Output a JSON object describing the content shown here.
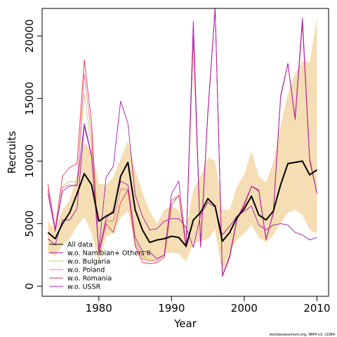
{
  "chart_data": {
    "type": "line",
    "xlabel": "Year",
    "ylabel": "Recruits",
    "xlim": [
      1972.2,
      2011.6
    ],
    "ylim": [
      -800,
      22200
    ],
    "x_ticks": [
      1980,
      1990,
      2000,
      2010
    ],
    "y_ticks": [
      0,
      5000,
      10000,
      15000,
      20000
    ],
    "years": [
      1973,
      1974,
      1975,
      1976,
      1977,
      1978,
      1979,
      1980,
      1981,
      1982,
      1983,
      1984,
      1985,
      1986,
      1987,
      1988,
      1989,
      1990,
      1991,
      1992,
      1993,
      1994,
      1995,
      1996,
      1997,
      1998,
      1999,
      2000,
      2001,
      2002,
      2003,
      2004,
      2005,
      2006,
      2007,
      2008,
      2009,
      2010
    ],
    "band": {
      "color": "#f5deb3",
      "lower": [
        2700,
        2400,
        3300,
        3800,
        4800,
        5500,
        4300,
        1800,
        4000,
        4200,
        5500,
        6000,
        3300,
        2100,
        2000,
        2000,
        2600,
        2700,
        2600,
        2000,
        3400,
        3600,
        3800,
        4500,
        1000,
        2800,
        3700,
        4200,
        4900,
        3900,
        3500,
        4100,
        5000,
        5900,
        6100,
        5700,
        4500,
        4200
      ],
      "upper": [
        5200,
        4500,
        6100,
        6900,
        9000,
        11500,
        10800,
        8200,
        8100,
        8700,
        10200,
        11600,
        9300,
        7500,
        6000,
        5000,
        6100,
        6400,
        6100,
        4600,
        7700,
        8800,
        10300,
        10000,
        6100,
        6100,
        8000,
        8900,
        10800,
        8800,
        8300,
        9900,
        12800,
        15400,
        17000,
        18000,
        17900,
        21500
      ]
    },
    "series": [
      {
        "name": "All data",
        "color": "#000000",
        "width": 2.0,
        "values": [
          4300,
          3800,
          5000,
          5900,
          7400,
          9000,
          8100,
          5200,
          5600,
          5900,
          8800,
          9900,
          6100,
          4500,
          3500,
          3700,
          3800,
          4000,
          3900,
          3200,
          5300,
          5900,
          7000,
          6400,
          3600,
          4300,
          5500,
          6200,
          7200,
          5700,
          5300,
          6000,
          8100,
          9800,
          9900,
          10000,
          8900,
          9300
        ]
      },
      {
        "name": "w.o. Namibian+ Others II",
        "color": "#9b1aa0",
        "width": 0.9,
        "values": [
          3800,
          3300,
          5300,
          5300,
          6200,
          12800,
          10400,
          2900,
          8700,
          9600,
          14800,
          13000,
          7300,
          5600,
          4500,
          4600,
          5200,
          5400,
          5400,
          4700,
          3100,
          5700,
          6700,
          6300,
          4100,
          4800,
          5600,
          6000,
          6400,
          4900,
          4500,
          4900,
          5000,
          4900,
          4300,
          4100,
          3700,
          3900
        ]
      },
      {
        "name": "w.o. Bulgaria",
        "color": "#b8d94f",
        "width": 0.9,
        "values": [
          7600,
          4500,
          8000,
          8400,
          8300,
          15400,
          11000,
          2900,
          5200,
          5300,
          7700,
          7800,
          3700,
          2500,
          2100,
          2100,
          2400,
          6800,
          7200,
          3300,
          20100,
          3400,
          13800,
          22200,
          900,
          2400,
          5300,
          6500,
          7900,
          7700,
          3700,
          5800,
          15000,
          17800,
          13400,
          21400,
          10200,
          7500
        ]
      },
      {
        "name": "w.o. Poland",
        "color": "#f26ec0",
        "width": 0.9,
        "values": [
          7800,
          4400,
          7900,
          8100,
          8000,
          17000,
          12000,
          2700,
          5200,
          5200,
          7800,
          7700,
          3400,
          2200,
          2000,
          2100,
          2500,
          6900,
          7200,
          3200,
          20100,
          3300,
          13900,
          22200,
          800,
          2300,
          5300,
          6500,
          8000,
          7600,
          3700,
          5900,
          15100,
          17800,
          13500,
          21400,
          10100,
          7400
        ]
      },
      {
        "name": "w.o. Romania",
        "color": "#e8353f",
        "width": 0.9,
        "values": [
          8200,
          4600,
          8800,
          9500,
          9800,
          18100,
          13100,
          2600,
          5000,
          4300,
          6700,
          7700,
          3200,
          1900,
          1800,
          1900,
          2300,
          6500,
          7300,
          3100,
          20000,
          3100,
          13800,
          22200,
          800,
          2300,
          5300,
          6400,
          8000,
          7600,
          3700,
          5900,
          15100,
          17800,
          13300,
          21000,
          10000,
          7400
        ]
      },
      {
        "name": "w.o. USSR",
        "color": "#a81dbd",
        "width": 0.9,
        "values": [
          7400,
          4400,
          7600,
          8000,
          8100,
          13000,
          10500,
          2800,
          5400,
          6100,
          8400,
          8100,
          3900,
          2800,
          2700,
          2200,
          2500,
          7400,
          8400,
          3100,
          21200,
          3200,
          14000,
          22200,
          800,
          2500,
          5400,
          6600,
          8000,
          7700,
          3800,
          5800,
          15200,
          17800,
          13400,
          21400,
          10200,
          7400
        ]
      }
    ],
    "legend": {
      "position": "bottom-left"
    },
    "grid": false
  },
  "footer": {
    "credit": "stockassessment.org, NMH-v3, r2084"
  }
}
